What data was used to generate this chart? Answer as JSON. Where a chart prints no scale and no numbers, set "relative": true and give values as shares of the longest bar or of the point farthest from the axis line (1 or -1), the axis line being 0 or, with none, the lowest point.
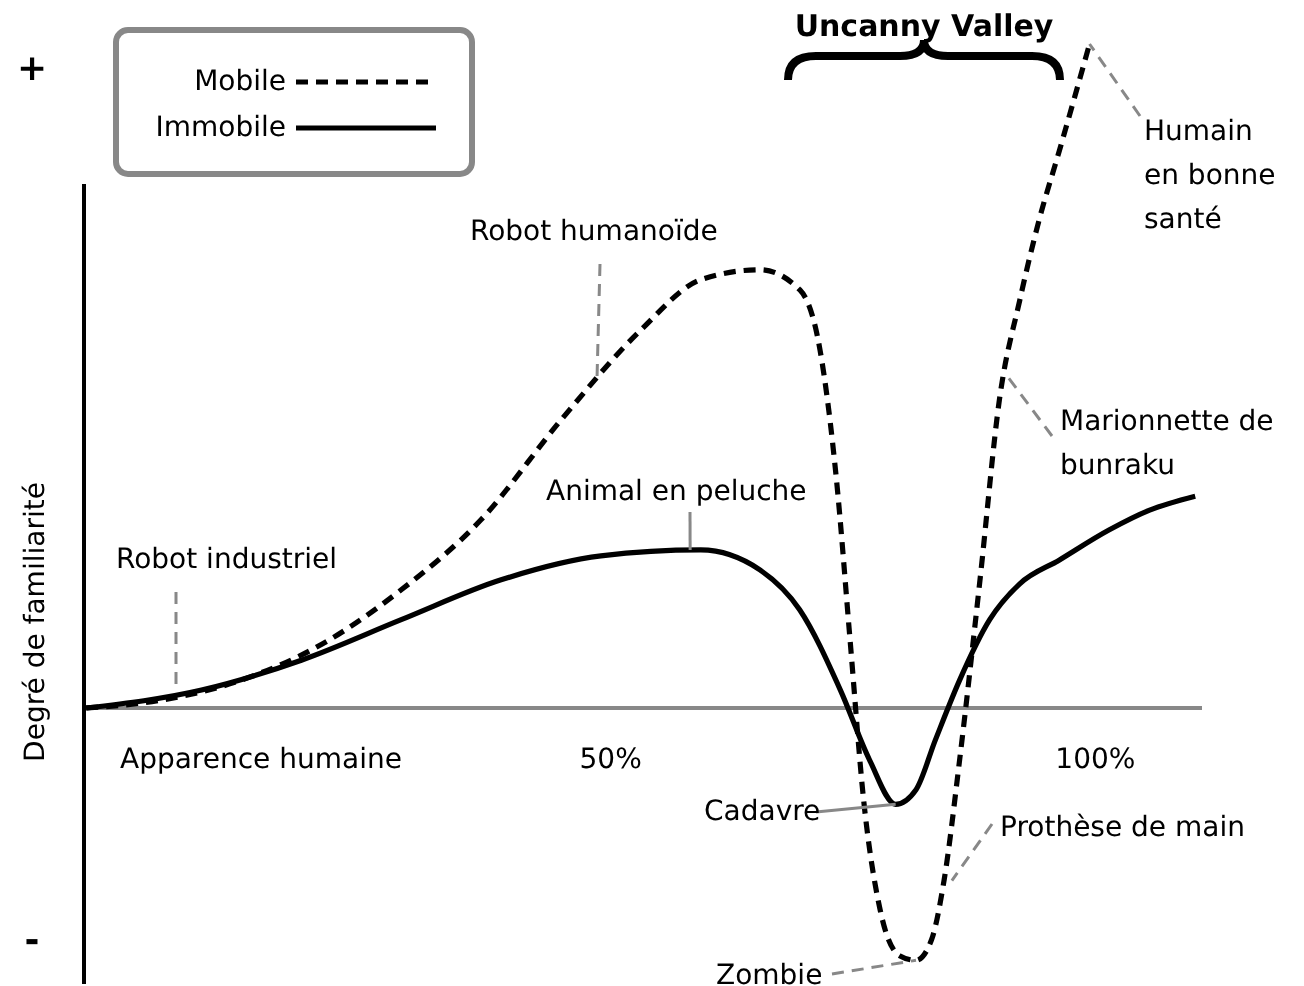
{
  "chart_data": {
    "type": "line",
    "relative": true,
    "xlabel": "Apparence humaine",
    "ylabel": "Degré de familiarité",
    "xlim": [
      -4.2,
      111
    ],
    "xticks": [
      {
        "value": 50,
        "label": "50%"
      },
      {
        "value": 100,
        "label": "100%"
      }
    ],
    "legend": "top left",
    "marker": "none",
    "grid": false,
    "series": [
      {
        "name": "Mobile",
        "color": "#000000",
        "line_style": "dashed",
        "x": [
          -4.1,
          3.7,
          11.9,
          20.2,
          28.4,
          36.6,
          44.9,
          53.1,
          59.3,
          65.4,
          69.5,
          71.6,
          73.3,
          74.7,
          76.1,
          77.8,
          79.8,
          81.5,
          83.1,
          84.4,
          86.0,
          88.1,
          90.1,
          92.2,
          94.2,
          96.3,
          99.4
        ],
        "values": [
          0,
          0.012,
          0.042,
          0.096,
          0.178,
          0.283,
          0.434,
          0.569,
          0.645,
          0.66,
          0.63,
          0.539,
          0.343,
          0.102,
          -0.139,
          -0.304,
          -0.373,
          -0.38,
          -0.349,
          -0.259,
          -0.078,
          0.193,
          0.464,
          0.614,
          0.735,
          0.84,
          1
        ]
      },
      {
        "name": "Immobile",
        "color": "#000000",
        "line_style": "solid",
        "x": [
          -4.1,
          7.8,
          18.1,
          28.4,
          38.7,
          49.0,
          59.3,
          65.4,
          69.5,
          73.7,
          76.7,
          79.4,
          81.5,
          83.5,
          86.0,
          89.1,
          92.2,
          96.3,
          101.4,
          105.6,
          110.3
        ],
        "values": [
          0,
          0.027,
          0.072,
          0.133,
          0.193,
          0.229,
          0.238,
          0.208,
          0.148,
          0.027,
          -0.078,
          -0.145,
          -0.123,
          -0.048,
          0.042,
          0.133,
          0.187,
          0.223,
          0.268,
          0.298,
          0.319
        ]
      }
    ],
    "annotations": [
      "+",
      "-",
      "Uncanny Valley",
      "Robot industriel",
      {
        "text": "Robot humanoïde",
        "x": 48.6,
        "y": 0.5
      },
      {
        "text": "Animal en peluche",
        "x": 58.2,
        "y": 0.238
      },
      {
        "text": "Cadavre",
        "x": 79.4,
        "y": -0.145
      },
      {
        "text": "Zombie",
        "x": 81.5,
        "y": -0.38
      },
      {
        "text": "Prothèse de main",
        "x": 85.2,
        "y": -0.26
      },
      {
        "text": "Marionnette de bunraku",
        "x": 90.9,
        "y": 0.5
      },
      {
        "text": "Humain en bonne santé",
        "x": 99.4,
        "y": 1
      }
    ]
  }
}
